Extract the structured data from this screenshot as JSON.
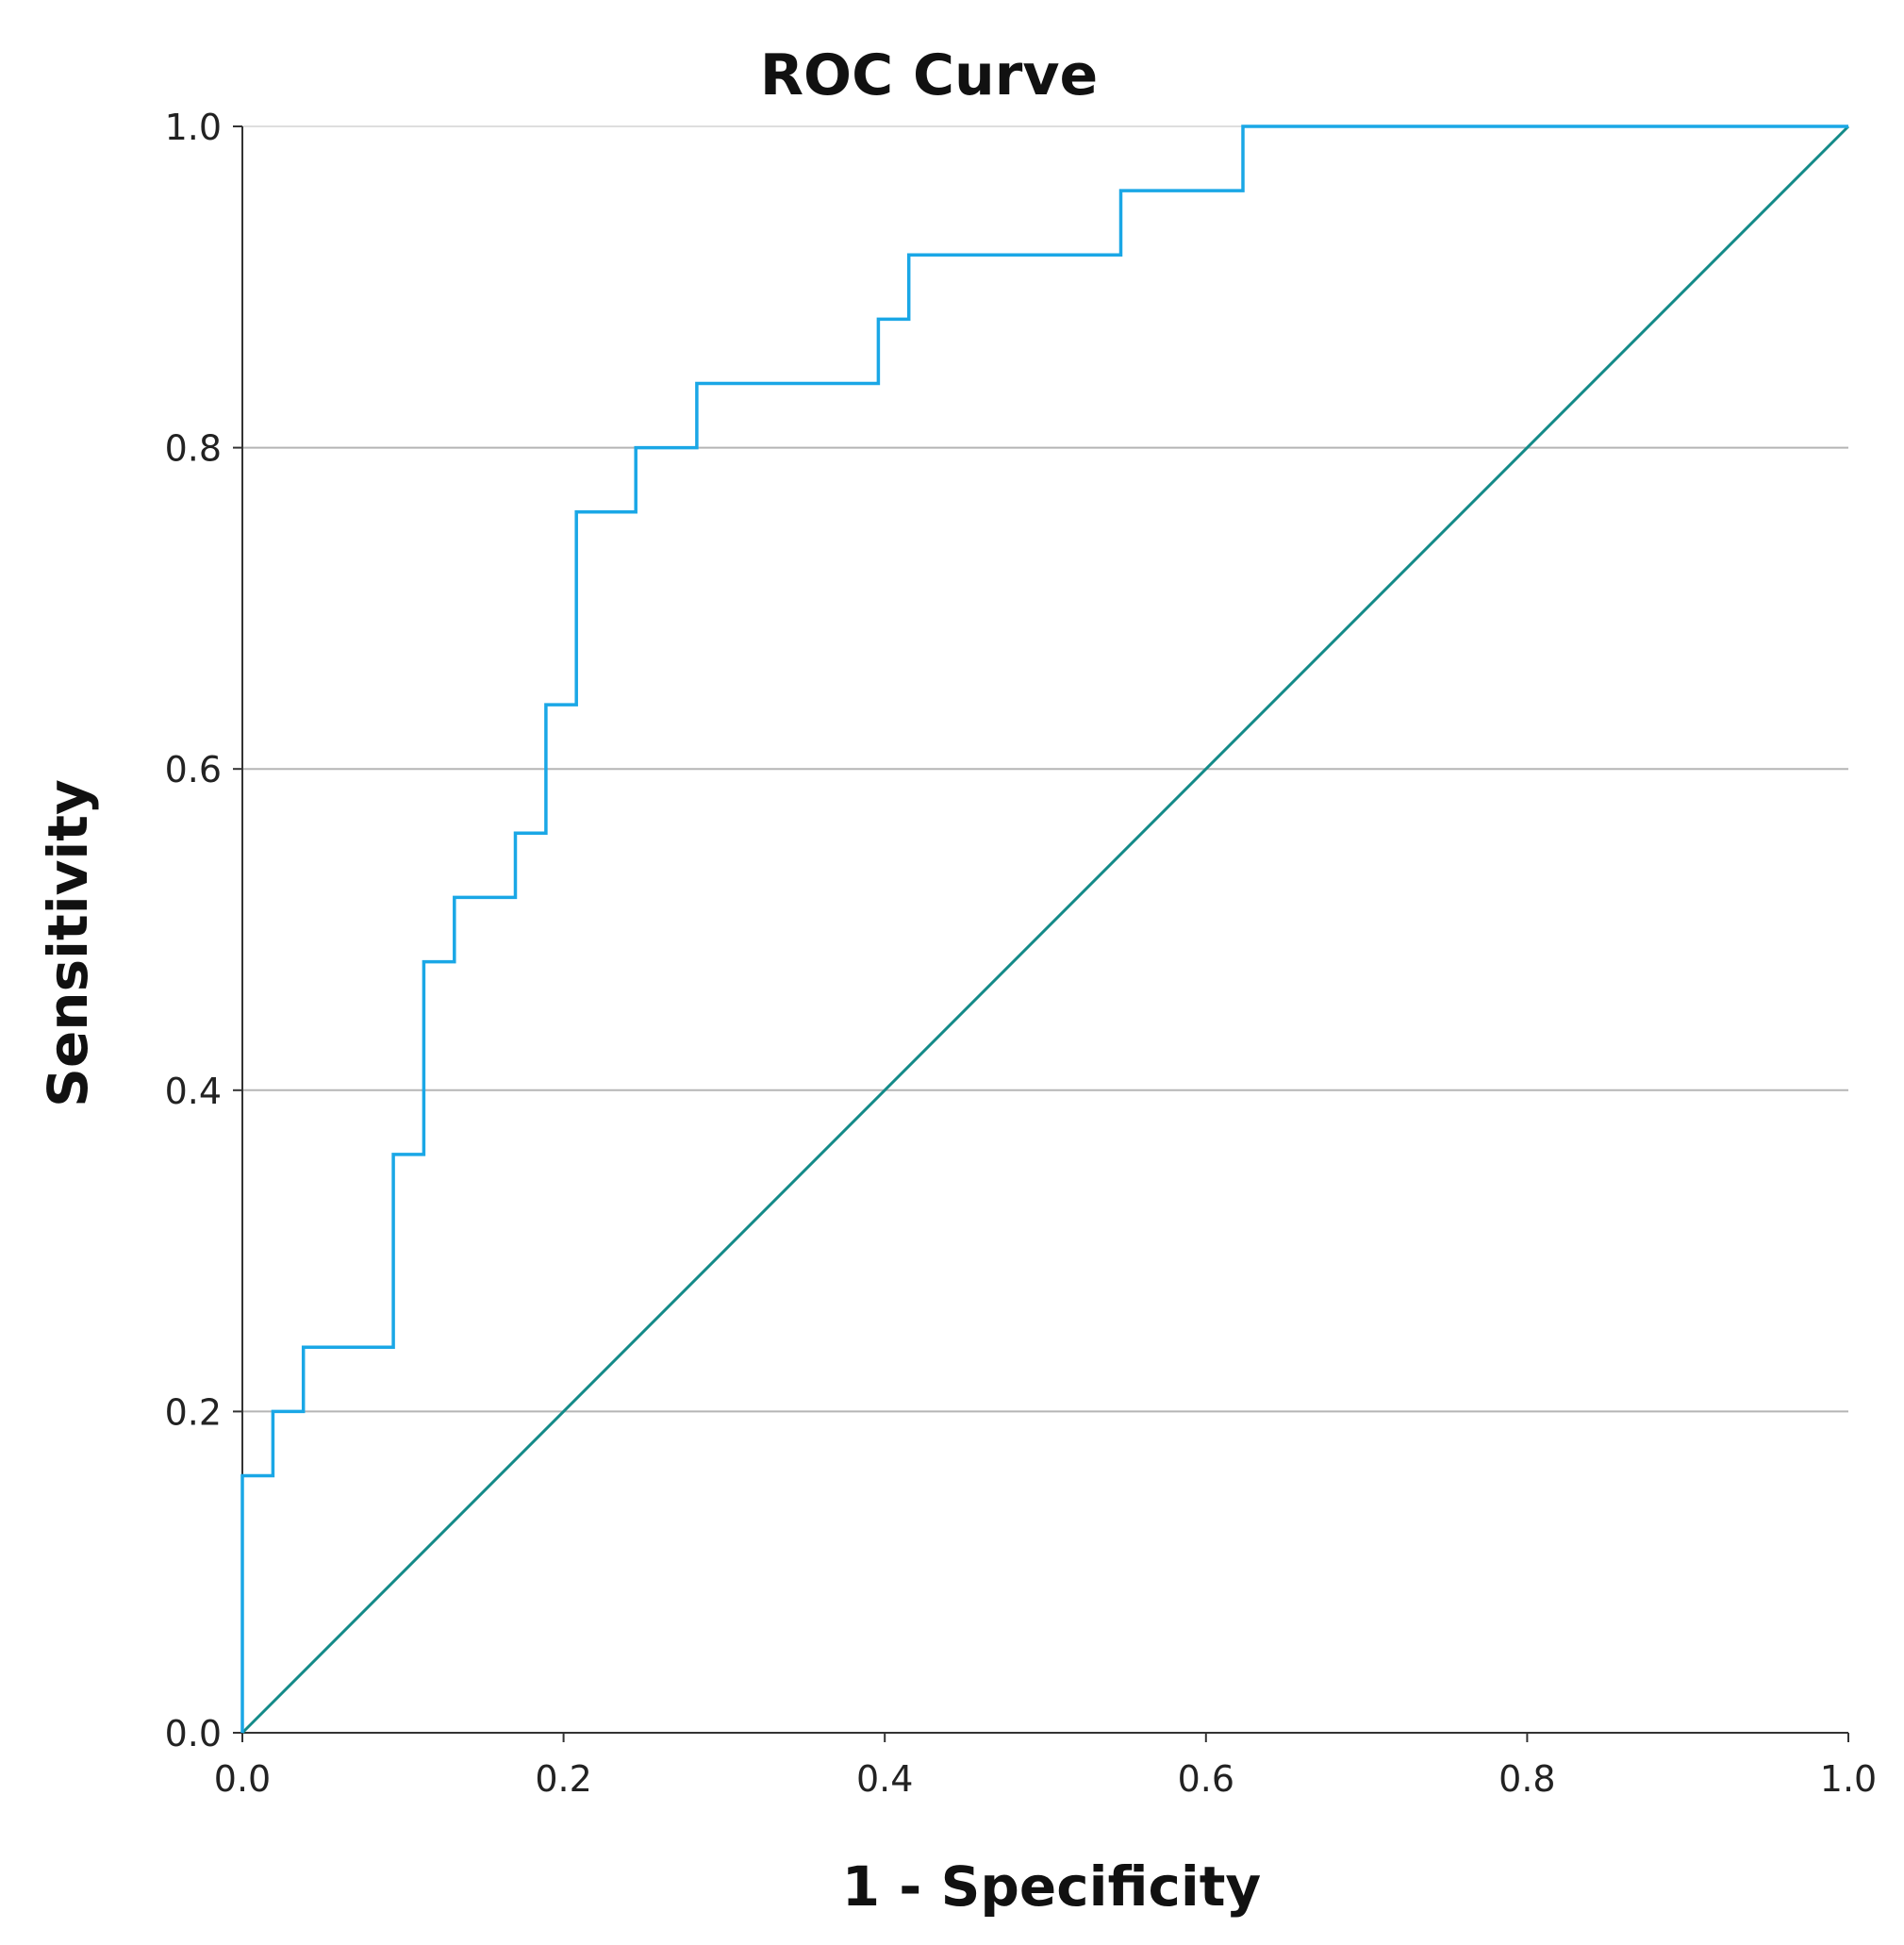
{
  "chart_data": {
    "type": "line",
    "title": "ROC Curve",
    "xlabel": "1 - Specificity",
    "ylabel": "Sensitivity",
    "xlim": [
      0.0,
      1.0
    ],
    "ylim": [
      0.0,
      1.0
    ],
    "x_ticks": [
      "0.0",
      "0.2",
      "0.4",
      "0.6",
      "0.8",
      "1.0"
    ],
    "y_ticks": [
      "0.0",
      "0.2",
      "0.4",
      "0.6",
      "0.8",
      "1.0"
    ],
    "grid": "horizontal",
    "legend": "none",
    "series": [
      {
        "style": "step",
        "color": "#1aa7e6",
        "x": [
          0.0,
          0.0,
          0.019,
          0.019,
          0.038,
          0.038,
          0.094,
          0.094,
          0.113,
          0.113,
          0.132,
          0.132,
          0.17,
          0.17,
          0.189,
          0.189,
          0.208,
          0.208,
          0.245,
          0.245,
          0.283,
          0.283,
          0.396,
          0.396,
          0.415,
          0.415,
          0.547,
          0.547,
          0.623,
          0.623,
          1.0
        ],
        "y": [
          0.0,
          0.16,
          0.16,
          0.2,
          0.2,
          0.24,
          0.24,
          0.36,
          0.36,
          0.48,
          0.48,
          0.52,
          0.52,
          0.56,
          0.56,
          0.64,
          0.64,
          0.76,
          0.76,
          0.8,
          0.8,
          0.84,
          0.84,
          0.88,
          0.88,
          0.92,
          0.92,
          0.96,
          0.96,
          1.0,
          1.0
        ]
      },
      {
        "style": "reference",
        "color": "#138a88",
        "x": [
          0.0,
          1.0
        ],
        "y": [
          0.0,
          1.0
        ]
      }
    ]
  }
}
